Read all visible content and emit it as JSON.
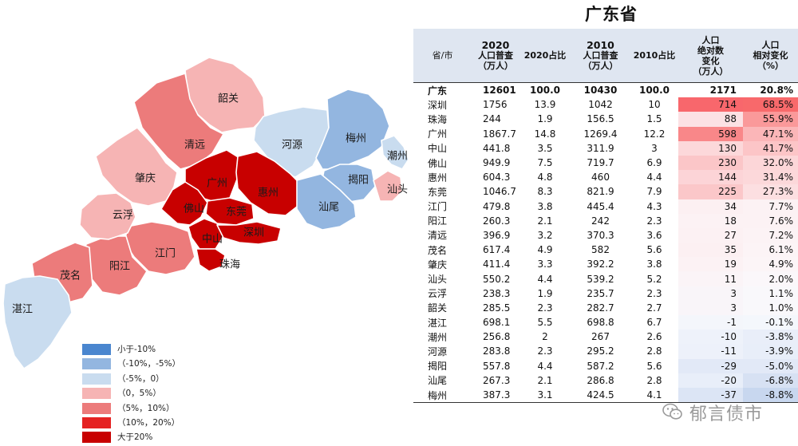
{
  "legend": [
    {
      "label": "小于-10%",
      "color": "#4a86cf"
    },
    {
      "label": "（-10%，-5%）",
      "color": "#93b6e0"
    },
    {
      "label": "（-5%，0）",
      "color": "#c9dcef"
    },
    {
      "label": "（0，5%）",
      "color": "#f6b4b4"
    },
    {
      "label": "（5%，10%）",
      "color": "#ec7b7b"
    },
    {
      "label": "（10%，20%）",
      "color": "#e52222"
    },
    {
      "label": "大于20%",
      "color": "#c80000"
    }
  ],
  "map": {
    "regions": [
      {
        "name": "韶关",
        "color": "#f6b4b4"
      },
      {
        "name": "河源",
        "color": "#c9dcef"
      },
      {
        "name": "梅州",
        "color": "#93b6e0"
      },
      {
        "name": "潮州",
        "color": "#c9dcef"
      },
      {
        "name": "清远",
        "color": "#ec7b7b"
      },
      {
        "name": "肇庆",
        "color": "#f6b4b4"
      },
      {
        "name": "广州",
        "color": "#c80000"
      },
      {
        "name": "惠州",
        "color": "#c80000"
      },
      {
        "name": "揭阳",
        "color": "#93b6e0"
      },
      {
        "name": "汕头",
        "color": "#f6b4b4"
      },
      {
        "name": "汕尾",
        "color": "#93b6e0"
      },
      {
        "name": "佛山",
        "color": "#c80000"
      },
      {
        "name": "东莞",
        "color": "#c80000"
      },
      {
        "name": "中山",
        "color": "#c80000"
      },
      {
        "name": "深圳",
        "color": "#c80000"
      },
      {
        "name": "珠海",
        "color": "#c80000"
      },
      {
        "name": "江门",
        "color": "#ec7b7b"
      },
      {
        "name": "阳江",
        "color": "#ec7b7b"
      },
      {
        "name": "云浮",
        "color": "#f6b4b4"
      },
      {
        "name": "茂名",
        "color": "#ec7b7b"
      },
      {
        "name": "湛江",
        "color": "#c9dcef"
      }
    ]
  },
  "table": {
    "title": "广东省",
    "headers": [
      [
        "省/市"
      ],
      [
        "2020",
        "人口普查",
        "（万人）"
      ],
      [
        "2020占比"
      ],
      [
        "2010",
        "人口普查",
        "（万人）"
      ],
      [
        "2010占比"
      ],
      [
        "人口",
        "绝对数",
        "变化",
        "（万人）"
      ],
      [
        "人口",
        "相对变化",
        "（%）"
      ]
    ],
    "rows": [
      {
        "city": "广东",
        "p2020": "12601",
        "s2020": "100.0",
        "p2010": "10430",
        "s2010": "100.0",
        "chg": "2171",
        "rel": "20.8%",
        "chg_bg": "#ffffff",
        "rel_bg": "#ffffff"
      },
      {
        "city": "深圳",
        "p2020": "1756",
        "s2020": "13.9",
        "p2010": "1042",
        "s2010": "10",
        "chg": "714",
        "rel": "68.5%",
        "chg_bg": "#f8676c",
        "rel_bg": "#f8696b"
      },
      {
        "city": "珠海",
        "p2020": "244",
        "s2020": "1.9",
        "p2010": "156.5",
        "s2010": "1.5",
        "chg": "88",
        "rel": "55.9%",
        "chg_bg": "#fce1e4",
        "rel_bg": "#fa999a"
      },
      {
        "city": "广州",
        "p2020": "1867.7",
        "s2020": "14.8",
        "p2010": "1269.4",
        "s2010": "12.2",
        "chg": "598",
        "rel": "47.1%",
        "chg_bg": "#f98789",
        "rel_bg": "#fbb6b8"
      },
      {
        "city": "中山",
        "p2020": "441.8",
        "s2020": "3.5",
        "p2010": "311.9",
        "s2010": "3",
        "chg": "130",
        "rel": "41.7%",
        "chg_bg": "#fcd8da",
        "rel_bg": "#fcc5c7"
      },
      {
        "city": "佛山",
        "p2020": "949.9",
        "s2020": "7.5",
        "p2010": "719.7",
        "s2010": "6.9",
        "chg": "230",
        "rel": "32.0%",
        "chg_bg": "#fbc6c8",
        "rel_bg": "#fcd6d8"
      },
      {
        "city": "惠州",
        "p2020": "604.3",
        "s2020": "4.8",
        "p2010": "460",
        "s2010": "4.4",
        "chg": "144",
        "rel": "31.4%",
        "chg_bg": "#fcd4d7",
        "rel_bg": "#fcd8da"
      },
      {
        "city": "东莞",
        "p2020": "1046.7",
        "s2020": "8.3",
        "p2010": "821.9",
        "s2010": "7.9",
        "chg": "225",
        "rel": "27.3%",
        "chg_bg": "#fbc7c9",
        "rel_bg": "#fcdfe1"
      },
      {
        "city": "江门",
        "p2020": "479.8",
        "s2020": "3.8",
        "p2010": "445.4",
        "s2010": "4.3",
        "chg": "34",
        "rel": "7.7%",
        "chg_bg": "#fcf0f2",
        "rel_bg": "#fcf2f4"
      },
      {
        "city": "阳江",
        "p2020": "260.3",
        "s2020": "2.1",
        "p2010": "242",
        "s2010": "2.3",
        "chg": "18",
        "rel": "7.6%",
        "chg_bg": "#fcf2f4",
        "rel_bg": "#fcf2f4"
      },
      {
        "city": "清远",
        "p2020": "396.9",
        "s2020": "3.2",
        "p2010": "370.3",
        "s2010": "3.6",
        "chg": "27",
        "rel": "7.2%",
        "chg_bg": "#fcf1f3",
        "rel_bg": "#fcf3f5"
      },
      {
        "city": "茂名",
        "p2020": "617.4",
        "s2020": "4.9",
        "p2010": "582",
        "s2010": "5.6",
        "chg": "35",
        "rel": "6.1%",
        "chg_bg": "#fcf0f2",
        "rel_bg": "#fcf4f6"
      },
      {
        "city": "肇庆",
        "p2020": "411.4",
        "s2020": "3.3",
        "p2010": "392.2",
        "s2010": "3.8",
        "chg": "19",
        "rel": "4.9%",
        "chg_bg": "#fcf2f4",
        "rel_bg": "#fcf5f7"
      },
      {
        "city": "汕头",
        "p2020": "550.2",
        "s2020": "4.4",
        "p2010": "539.2",
        "s2010": "5.2",
        "chg": "11",
        "rel": "2.0%",
        "chg_bg": "#fbf4f7",
        "rel_bg": "#fbf7fa"
      },
      {
        "city": "云浮",
        "p2020": "238.3",
        "s2020": "1.9",
        "p2010": "235.7",
        "s2010": "2.3",
        "chg": "3",
        "rel": "1.1%",
        "chg_bg": "#f9f5f9",
        "rel_bg": "#f9f8fb"
      },
      {
        "city": "韶关",
        "p2020": "285.5",
        "s2020": "2.3",
        "p2010": "282.7",
        "s2010": "2.7",
        "chg": "3",
        "rel": "1.0%",
        "chg_bg": "#f9f5f9",
        "rel_bg": "#f9f8fb"
      },
      {
        "city": "湛江",
        "p2020": "698.1",
        "s2020": "5.5",
        "p2010": "698.8",
        "s2010": "6.7",
        "chg": "-1",
        "rel": "-0.1%",
        "chg_bg": "#f4f6fb",
        "rel_bg": "#f4f7fc"
      },
      {
        "city": "潮州",
        "p2020": "256.8",
        "s2020": "2",
        "p2010": "267",
        "s2010": "2.6",
        "chg": "-10",
        "rel": "-3.8%",
        "chg_bg": "#eef2fa",
        "rel_bg": "#e9eef9"
      },
      {
        "city": "河源",
        "p2020": "283.8",
        "s2020": "2.3",
        "p2010": "295.2",
        "s2010": "2.8",
        "chg": "-11",
        "rel": "-3.9%",
        "chg_bg": "#edf1fa",
        "rel_bg": "#e8eef9"
      },
      {
        "city": "揭阳",
        "p2020": "557.8",
        "s2020": "4.4",
        "p2010": "587.2",
        "s2010": "5.6",
        "chg": "-29",
        "rel": "-5.0%",
        "chg_bg": "#e2e9f7",
        "rel_bg": "#e2e9f7"
      },
      {
        "city": "汕尾",
        "p2020": "267.3",
        "s2020": "2.1",
        "p2010": "286.8",
        "s2010": "2.8",
        "chg": "-20",
        "rel": "-6.8%",
        "chg_bg": "#e8eef9",
        "rel_bg": "#d7e1f3"
      },
      {
        "city": "梅州",
        "p2020": "387.3",
        "s2020": "3.1",
        "p2010": "424.5",
        "s2010": "4.1",
        "chg": "-37",
        "rel": "-8.8%",
        "chg_bg": "#dce5f5",
        "rel_bg": "#c8d7ef"
      }
    ]
  },
  "watermark": {
    "text": "郁言债市"
  }
}
